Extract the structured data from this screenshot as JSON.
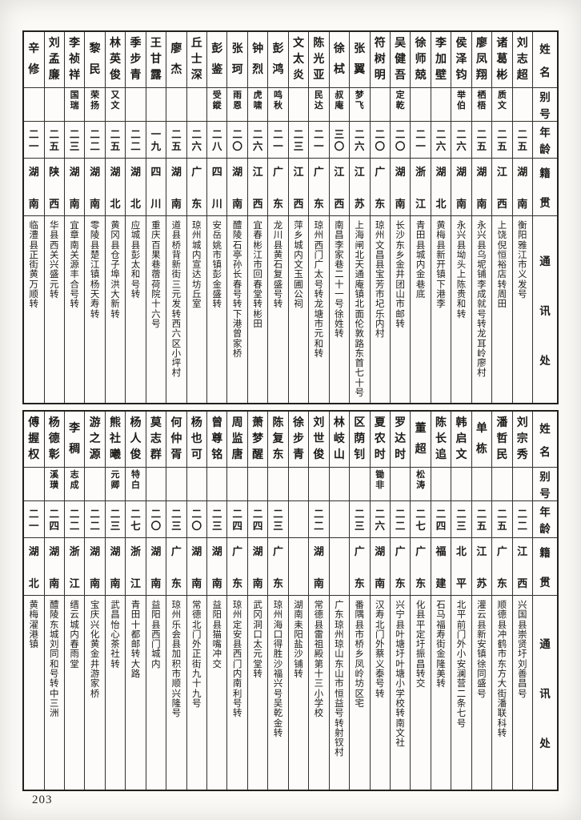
{
  "page": {
    "number": "203",
    "background": "#fcfbf8",
    "ink": "#1d1b18"
  },
  "row_labels": {
    "name": "姓名",
    "alias": "别号",
    "age": "年龄",
    "origin": "籍贯",
    "address": "通讯处"
  },
  "tables": {
    "top": {
      "people_right_to_left": true,
      "people": [
        {
          "name": "刘志超",
          "alias": "",
          "age": "二五",
          "origin": "湖南",
          "address": "衡阳雅江市义发号"
        },
        {
          "name": "诸葛彬",
          "alias": "质文",
          "age": "二五",
          "origin": "江西",
          "address": "上饶倪恒裕店转周田"
        },
        {
          "name": "廖凤翔",
          "alias": "栖梧",
          "age": "二五",
          "origin": "湖南",
          "address": "永兴县乌坭铺李成就号转龙耳岭廖村"
        },
        {
          "name": "侯泽钧",
          "alias": "举伯",
          "age": "二六",
          "origin": "湖南",
          "address": "永兴县坳头上陈贵和转"
        },
        {
          "name": "李加壁",
          "alias": "",
          "age": "二六",
          "origin": "湖北",
          "address": "黄梅县新开镇下港李"
        },
        {
          "name": "徐师兢",
          "alias": "",
          "age": "二一",
          "origin": "浙江",
          "address": "青田县城内金巷底"
        },
        {
          "name": "吴健吾",
          "alias": "定乾",
          "age": "二〇",
          "origin": "湖南",
          "address": "长沙东乡金井团山市邮转"
        },
        {
          "name": "符树明",
          "alias": "",
          "age": "二〇",
          "origin": "广东",
          "address": "琼州文昌县宝芳市圮乐内村"
        },
        {
          "name": "张翼",
          "alias": "梦飞",
          "age": "二六",
          "origin": "江苏",
          "address": "上海闸北天通庵镇北面伦敦路东首七十号"
        },
        {
          "name": "徐栻",
          "alias": "叔庵",
          "age": "三〇",
          "origin": "江西",
          "address": "南昌李家巷二十一号徐姓转"
        },
        {
          "name": "陈光亚",
          "alias": "民达",
          "age": "二一",
          "origin": "广东",
          "address": "琼州西门广太号转龙塘市元和转"
        },
        {
          "name": "文太炎",
          "alias": "",
          "age": "二三",
          "origin": "江西",
          "address": "萍乡城内文玉圃公祠"
        },
        {
          "name": "彭鸿",
          "alias": "鸣秋",
          "age": "二一",
          "origin": "广东",
          "address": "龙川县黄石复盛号转"
        },
        {
          "name": "钟烈",
          "alias": "虎啸",
          "age": "二六",
          "origin": "江西",
          "address": "宜春彬江市回春堂转彬田"
        },
        {
          "name": "张珂",
          "alias": "雨恩",
          "age": "二〇",
          "origin": "湖南",
          "address": "醴陵石亭孙长春号转下港曾家桥"
        },
        {
          "name": "彭鉴",
          "alias": "受鏦",
          "age": "二八",
          "origin": "四川",
          "address": "安岳姚市镇彭金盛转"
        },
        {
          "name": "丘士深",
          "alias": "",
          "age": "二六",
          "origin": "广东",
          "address": "琼州城内宣达坊丘室"
        },
        {
          "name": "廖杰",
          "alias": "",
          "age": "二五",
          "origin": "湖南",
          "address": "道县桥背新街三元发转西六区小坪村"
        },
        {
          "name": "王甘露",
          "alias": "",
          "age": "一九",
          "origin": "四川",
          "address": "重庆百果巷蓿荷院十六号"
        },
        {
          "name": "季步青",
          "alias": "",
          "age": "二二",
          "origin": "湖北",
          "address": "应城县彭太和号转"
        },
        {
          "name": "林英俊",
          "alias": "又文",
          "age": "二五",
          "origin": "湖北",
          "address": "黄冈县仓子埠洪大新转"
        },
        {
          "name": "黎民",
          "alias": "荣扬",
          "age": "二二",
          "origin": "湖南",
          "address": "零陵县楚江镇杨天寿转"
        },
        {
          "name": "李祯祥",
          "alias": "国瑞",
          "age": "二三",
          "origin": "湖南",
          "address": "宜章南关源丰合号转"
        },
        {
          "name": "刘孟廉",
          "alias": "",
          "age": "二五",
          "origin": "陕西",
          "address": "华县西关兴盛元转"
        },
        {
          "name": "辛修",
          "alias": "",
          "age": "二一",
          "origin": "湖南",
          "address": "临澧县正街黄万顺转"
        }
      ]
    },
    "bottom": {
      "people_right_to_left": true,
      "people": [
        {
          "name": "刘宗秀",
          "alias": "",
          "age": "二二",
          "origin": "江西",
          "address": "兴国县崇贤圩刘善昌号"
        },
        {
          "name": "潘哲民",
          "alias": "",
          "age": "二五",
          "origin": "广东",
          "address": "顺德县冲鹤市东方大街潘联科转"
        },
        {
          "name": "单栋",
          "alias": "",
          "age": "二五",
          "origin": "江苏",
          "address": "灌云县新安镇徐同盛号"
        },
        {
          "name": "韩启文",
          "alias": "",
          "age": "二三",
          "origin": "北平",
          "address": "北平前门外小安澜营二条七号"
        },
        {
          "name": "陈长追",
          "alias": "",
          "age": "二四",
          "origin": "福建",
          "address": "石马福寿街金隆美转"
        },
        {
          "name": "董超",
          "alias": "松涛",
          "age": "二七",
          "origin": "广东",
          "address": "化县平定圩振昌转交"
        },
        {
          "name": "罗达时",
          "alias": "",
          "age": "二二",
          "origin": "广东",
          "address": "兴宁县叶塘圩叶塘小学校转南文社"
        },
        {
          "name": "夏农时",
          "alias": "锄非",
          "age": "二六",
          "origin": "湖南",
          "address": "汉寿北门外蔡义泰号转"
        },
        {
          "name": "区荫钊",
          "alias": "",
          "age": "二三",
          "origin": "广东",
          "address": "番隅县市桥乡凤岭坊区宅"
        },
        {
          "name": "林岐山",
          "alias": "",
          "age": "",
          "origin": "",
          "address": "广东琼州琼山东山市恒益号转射钗村"
        },
        {
          "name": "刘世俊",
          "alias": "",
          "age": "二二",
          "origin": "湖南",
          "address": "常德县雷祖殿第十三小学校"
        },
        {
          "name": "徐步青",
          "alias": "",
          "age": "",
          "origin": "",
          "address": "湖南耒阳盐沙铺转"
        },
        {
          "name": "陈复东",
          "alias": "",
          "age": "二三",
          "origin": "广东",
          "address": "琼州海口得胜沙福兴号吴乾金转"
        },
        {
          "name": "萧梦醒",
          "alias": "",
          "age": "二四",
          "origin": "湖南",
          "address": "武冈洞口太元堂转"
        },
        {
          "name": "周监唐",
          "alias": "",
          "age": "二四",
          "origin": "广东",
          "address": "琼州定安县西门内南利号转"
        },
        {
          "name": "曾尊铭",
          "alias": "",
          "age": "二三",
          "origin": "湖南",
          "address": "益阳县猫嘴冲交"
        },
        {
          "name": "杨也可",
          "alias": "",
          "age": "二〇",
          "origin": "湖南",
          "address": "常德北门外正街九十九号"
        },
        {
          "name": "何仲胥",
          "alias": "",
          "age": "二三",
          "origin": "广东",
          "address": "琼州乐会县加积市顺兴隆号"
        },
        {
          "name": "莫志群",
          "alias": "",
          "age": "二〇",
          "origin": "湖南",
          "address": "益阳县西门城内"
        },
        {
          "name": "杨人俊",
          "alias": "特白",
          "age": "二七",
          "origin": "浙江",
          "address": "青田十都邮转大路"
        },
        {
          "name": "熊社曦",
          "alias": "元卿",
          "age": "二三",
          "origin": "湖南",
          "address": "武昌怡心茶社转"
        },
        {
          "name": "游之源",
          "alias": "",
          "age": "二二",
          "origin": "湖南",
          "address": "宝庆兴化黄金井游家桥"
        },
        {
          "name": "李稠",
          "alias": "志成",
          "age": "二二",
          "origin": "浙江",
          "address": "缙云城内春雨堂"
        },
        {
          "name": "杨德彰",
          "alias": "溪璜",
          "age": "二四",
          "origin": "湖南",
          "address": "醴陵东城刘同和号转中三洲"
        },
        {
          "name": "傅握权",
          "alias": "",
          "age": "二一",
          "origin": "湖北",
          "address": "黄梅濯港镇"
        }
      ]
    }
  }
}
